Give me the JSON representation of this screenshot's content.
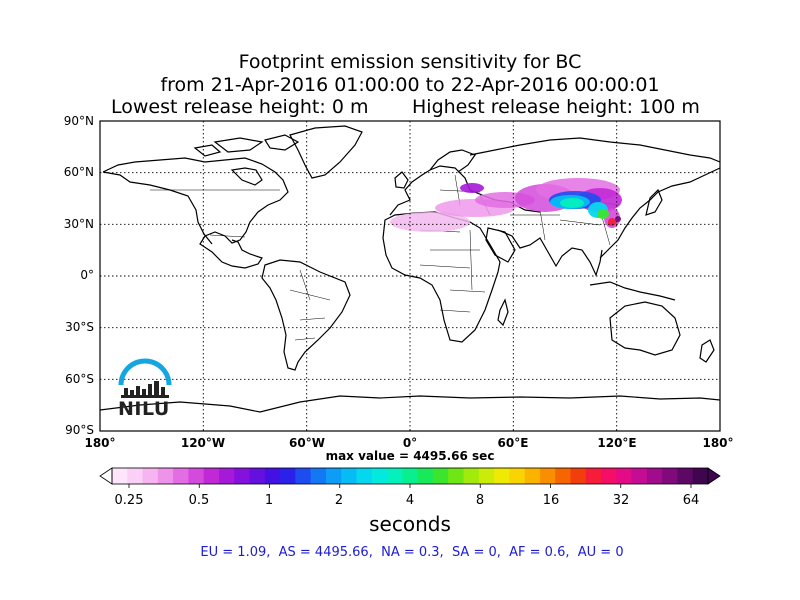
{
  "title": {
    "line1": "Footprint emission sensitivity for BC",
    "line2": "from 21-Apr-2016 01:00:00 to 22-Apr-2016 00:00:01",
    "lowest": "Lowest release height: 0 m",
    "highest": "Highest release height: 100 m"
  },
  "map": {
    "lat_labels": [
      "90°N",
      "60°N",
      "30°N",
      "0°",
      "30°S",
      "60°S",
      "90°S"
    ],
    "lon_labels": [
      "180°",
      "120°W",
      "60°W",
      "0°",
      "60°E",
      "120°E",
      "180°"
    ],
    "max_value": "max value = 4495.66 sec",
    "logo_text": "NILU"
  },
  "colorbar": {
    "ticks": [
      "0.25",
      "0.5",
      "1",
      "2",
      "4",
      "8",
      "16",
      "32",
      "64"
    ],
    "label": "seconds",
    "colors": [
      "#fde6fb",
      "#fbd0f7",
      "#f6b4f1",
      "#ee92ea",
      "#e36ee3",
      "#d44adc",
      "#c229d6",
      "#a519d8",
      "#8711dc",
      "#6610e0",
      "#4410e4",
      "#2a22ea",
      "#1d4df0",
      "#1477f4",
      "#0d9cf6",
      "#07bcf4",
      "#05d7ef",
      "#04e9dd",
      "#04f0bd",
      "#07ef8f",
      "#17e95a",
      "#3be52d",
      "#70e714",
      "#a2ea0c",
      "#cbec08",
      "#eeea04",
      "#f9d402",
      "#fab400",
      "#f98f00",
      "#f66600",
      "#f23e0c",
      "#f51d3a",
      "#f50e66",
      "#e40b86",
      "#c60c95",
      "#a30b8e",
      "#800a7c",
      "#5e0866",
      "#40054f"
    ],
    "under_color": "#ffffff",
    "over_color": "#40054f"
  },
  "stats": "EU = 1.09,  AS = 4495.66,  NA = 0.3,  SA = 0,  AF = 0.6,  AU = 0"
}
